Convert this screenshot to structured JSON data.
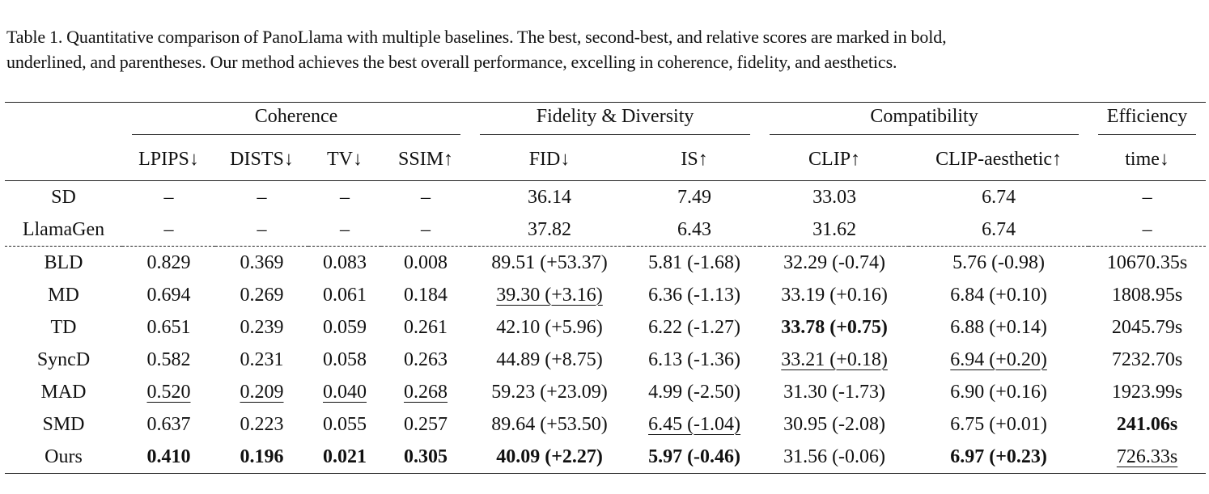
{
  "caption": {
    "line1": "Table 1.  Quantitative comparison of PanoLlama with multiple baselines.  The best, second-best, and relative scores are marked in bold,",
    "line2": "underlined, and parentheses. Our method achieves the best overall performance, excelling in coherence, fidelity, and aesthetics."
  },
  "groups": {
    "coherence": "Coherence",
    "fidelity": "Fidelity & Diversity",
    "compat": "Compatibility",
    "efficiency": "Efficiency"
  },
  "columns": [
    "LPIPS↓",
    "DISTS↓",
    "TV↓",
    "SSIM↑",
    "FID↓",
    "IS↑",
    "CLIP↑",
    "CLIP-aesthetic↑",
    "time↓"
  ],
  "rows": [
    {
      "method": "SD",
      "values": [
        "–",
        "–",
        "–",
        "–",
        "36.14",
        "7.49",
        "33.03",
        "6.74",
        "–"
      ],
      "style": [
        "",
        "",
        "",
        "",
        "",
        "",
        "",
        "",
        ""
      ]
    },
    {
      "method": "LlamaGen",
      "values": [
        "–",
        "–",
        "–",
        "–",
        "37.82",
        "6.43",
        "31.62",
        "6.74",
        "–"
      ],
      "style": [
        "",
        "",
        "",
        "",
        "",
        "",
        "",
        "",
        ""
      ]
    },
    {
      "method": "BLD",
      "values": [
        "0.829",
        "0.369",
        "0.083",
        "0.008",
        "89.51 (+53.37)",
        "5.81 (-1.68)",
        "32.29 (-0.74)",
        "5.76 (-0.98)",
        "10670.35s"
      ],
      "style": [
        "",
        "",
        "",
        "",
        "",
        "",
        "",
        "",
        ""
      ]
    },
    {
      "method": "MD",
      "values": [
        "0.694",
        "0.269",
        "0.061",
        "0.184",
        "39.30 (+3.16)",
        "6.36 (-1.13)",
        "33.19 (+0.16)",
        "6.84 (+0.10)",
        "1808.95s"
      ],
      "style": [
        "",
        "",
        "",
        "",
        "u",
        "",
        "",
        "",
        ""
      ]
    },
    {
      "method": "TD",
      "values": [
        "0.651",
        "0.239",
        "0.059",
        "0.261",
        "42.10 (+5.96)",
        "6.22 (-1.27)",
        "33.78 (+0.75)",
        "6.88 (+0.14)",
        "2045.79s"
      ],
      "style": [
        "",
        "",
        "",
        "",
        "",
        "",
        "b",
        "",
        ""
      ]
    },
    {
      "method": "SyncD",
      "values": [
        "0.582",
        "0.231",
        "0.058",
        "0.263",
        "44.89 (+8.75)",
        "6.13 (-1.36)",
        "33.21 (+0.18)",
        "6.94 (+0.20)",
        "7232.70s"
      ],
      "style": [
        "",
        "",
        "",
        "",
        "",
        "",
        "u",
        "u",
        ""
      ]
    },
    {
      "method": "MAD",
      "values": [
        "0.520",
        "0.209",
        "0.040",
        "0.268",
        "59.23 (+23.09)",
        "4.99 (-2.50)",
        "31.30 (-1.73)",
        "6.90 (+0.16)",
        "1923.99s"
      ],
      "style": [
        "u",
        "u",
        "u",
        "u",
        "",
        "",
        "",
        "",
        ""
      ]
    },
    {
      "method": "SMD",
      "values": [
        "0.637",
        "0.223",
        "0.055",
        "0.257",
        "89.64 (+53.50)",
        "6.45 (-1.04)",
        "30.95 (-2.08)",
        "6.75 (+0.01)",
        "241.06s"
      ],
      "style": [
        "",
        "",
        "",
        "",
        "",
        "u",
        "",
        "",
        "b"
      ]
    },
    {
      "method": "Ours",
      "values": [
        "0.410",
        "0.196",
        "0.021",
        "0.305",
        "40.09 (+2.27)",
        "5.97 (-0.46)",
        "31.56 (-0.06)",
        "6.97 (+0.23)",
        "726.33s"
      ],
      "style": [
        "b",
        "b",
        "b",
        "b",
        "b",
        "b",
        "",
        "b",
        "u"
      ]
    }
  ]
}
